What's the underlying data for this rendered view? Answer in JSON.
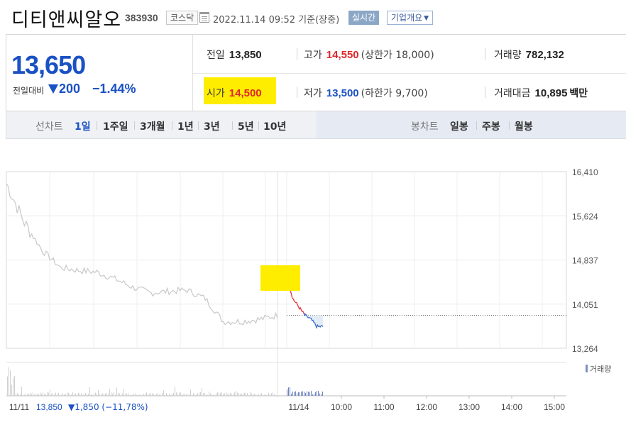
{
  "header": {
    "stock_name": "디티앤씨알오",
    "stock_code": "383930",
    "market_badge": "코스닥",
    "timestamp": "2022.11.14 09:52 기준(장중)",
    "realtime_badge": "실시간",
    "company_info_button": "기업개요"
  },
  "quote": {
    "price": "13,650",
    "change_label": "전일대비",
    "change_direction": "down",
    "change_value": "200",
    "change_percent": "−1.44%",
    "prev_close_label": "전일",
    "prev_close": "13,850",
    "high_label": "고가",
    "high": "14,550",
    "upper_limit": "(상한가 18,000)",
    "volume_label": "거래량",
    "volume": "782,132",
    "open_label": "시가",
    "open": "14,500",
    "low_label": "저가",
    "low": "13,500",
    "lower_limit": "(하한가 9,700)",
    "amount_label": "거래대금",
    "amount": "10,895",
    "amount_unit": "백만",
    "colors": {
      "down": "#1a51c4",
      "up": "#e0262a",
      "highlight": "#ffed00"
    }
  },
  "tabs": {
    "line_chart_label": "선차트",
    "line_periods": [
      "1일",
      "1주일",
      "3개월",
      "1년",
      "3년",
      "5년",
      "10년"
    ],
    "active_period": "1일",
    "candle_chart_label": "봉차트",
    "candle_periods": [
      "일봉",
      "주봉",
      "월봉"
    ]
  },
  "chart_data": {
    "type": "line",
    "y_ticks": [
      "16,410",
      "15,624",
      "14,837",
      "14,051",
      "13,264"
    ],
    "ylim": [
      13264,
      16410
    ],
    "prev_close_reference": 13850,
    "x_ticks": [
      "11/11",
      "11/14",
      "10:00",
      "11:00",
      "12:00",
      "13:00",
      "14:00",
      "15:00"
    ],
    "grid": true,
    "series": [
      {
        "x": [
          "11/11 09:00",
          "11/11 09:10",
          "11/11 09:20",
          "11/11 09:40",
          "11/11 10:00",
          "11/11 10:30",
          "11/11 11:00",
          "11/11 11:30",
          "11/11 12:00",
          "11/11 12:30",
          "11/11 13:00",
          "11/11 13:30",
          "11/11 14:00",
          "11/11 14:30",
          "11/11 15:00",
          "11/11 15:30"
        ],
        "values": [
          16200,
          15500,
          15000,
          14700,
          14650,
          14620,
          14500,
          14350,
          14250,
          14280,
          14300,
          14150,
          13740,
          13740,
          13780,
          13850
        ]
      },
      {
        "x": [
          "11/14 09:00",
          "11/14 09:05",
          "11/14 09:10",
          "11/14 09:20",
          "11/14 09:30",
          "11/14 09:40",
          "11/14 09:52"
        ],
        "values": [
          14550,
          14150,
          14000,
          13850,
          13780,
          13650,
          13650
        ]
      }
    ],
    "volume_label": "거래량",
    "footer_prev_day": "11/11",
    "footer_close": "13,850",
    "footer_change": "▼1,850 (−11,78%)"
  }
}
